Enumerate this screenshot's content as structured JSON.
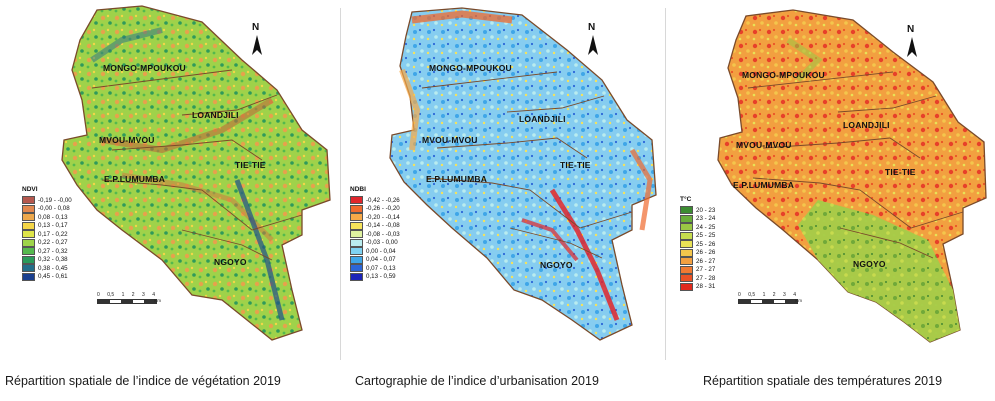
{
  "panels": [
    {
      "id": "ndvi",
      "caption": "Répartition spatiale de l’indice de végétation 2019",
      "legend": {
        "title": "NDVI",
        "classes": [
          {
            "label": "-0,19 - -0,00",
            "color": "#b5584e"
          },
          {
            "label": "-0,00 - 0,08",
            "color": "#e2884f"
          },
          {
            "label": "0,08 - 0,13",
            "color": "#eda84c"
          },
          {
            "label": "0,13 - 0,17",
            "color": "#f4d648"
          },
          {
            "label": "0,17 - 0,22",
            "color": "#dfe54a"
          },
          {
            "label": "0,22 - 0,27",
            "color": "#9ed44a"
          },
          {
            "label": "0,27 - 0,32",
            "color": "#55b94e"
          },
          {
            "label": "0,32 - 0,38",
            "color": "#2a9a5a"
          },
          {
            "label": "0,38 - 0,45",
            "color": "#246e8a"
          },
          {
            "label": "0,45 - 0,61",
            "color": "#1a3f8f"
          }
        ]
      },
      "districts": {
        "mongo": "MONGO-MPOUKOU",
        "loandjili": "LOANDJILI",
        "mvou": "MVOU-MVOU",
        "tietie": "TIE-TIE",
        "lumumba": "E.P.LUMUMBA",
        "ngoyo": "NGOYO"
      },
      "fill_colors": {
        "base": "#8fcf4a",
        "accent": "#e0a24c",
        "deep": "#2a7a8a",
        "edge": "#8a5a3a"
      }
    },
    {
      "id": "ndbi",
      "caption": "Cartographie de l’indice d’urbanisation 2019",
      "legend": {
        "title": "NDBI",
        "classes": [
          {
            "label": "-0,42 - -0,26",
            "color": "#e0262c"
          },
          {
            "label": "-0,26 - -0,20",
            "color": "#f06a2e"
          },
          {
            "label": "-0,20 - -0,14",
            "color": "#f7a948"
          },
          {
            "label": "-0,14 - -0,08",
            "color": "#f6e35a"
          },
          {
            "label": "-0,08 - -0,03",
            "color": "#dff2a0"
          },
          {
            "label": "-0,03 - 0,00",
            "color": "#b9ecef"
          },
          {
            "label": "0,00 - 0,04",
            "color": "#7ed2f2"
          },
          {
            "label": "0,04 - 0,07",
            "color": "#3fa6e8"
          },
          {
            "label": "0,07 - 0,13",
            "color": "#2c66d8"
          },
          {
            "label": "0,13 - 0,59",
            "color": "#1c24b8"
          }
        ]
      },
      "districts": {
        "mongo": "MONGO-MPOUKOU",
        "loandjili": "LOANDJILI",
        "mvou": "MVOU-MVOU",
        "tietie": "TIE-TIE",
        "lumumba": "E.P.LUMUMBA",
        "ngoyo": "NGOYO"
      },
      "fill_colors": {
        "base": "#7cc8ef",
        "accent": "#f1a23d",
        "deep": "#e0262c",
        "edge": "#8a5a3a"
      }
    },
    {
      "id": "temp",
      "caption": "Répartition spatiale des températures 2019",
      "legend": {
        "title": "T°C",
        "classes": [
          {
            "label": "20 - 23",
            "color": "#3c8c32"
          },
          {
            "label": "23 - 24",
            "color": "#6aae3a"
          },
          {
            "label": "24 - 25",
            "color": "#9ac844"
          },
          {
            "label": "25 - 25",
            "color": "#c6dc4e"
          },
          {
            "label": "25 - 26",
            "color": "#e9e256"
          },
          {
            "label": "26 - 26",
            "color": "#f4c64c"
          },
          {
            "label": "26 - 27",
            "color": "#f4a040"
          },
          {
            "label": "27 - 27",
            "color": "#f07a32"
          },
          {
            "label": "27 - 28",
            "color": "#ea5226"
          },
          {
            "label": "28 - 31",
            "color": "#e02a1e"
          }
        ]
      },
      "districts": {
        "mongo": "MONGO-MPOUKOU",
        "loandjili": "LOANDJILI",
        "mvou": "MVOU-MVOU",
        "tietie": "TIE-TIE",
        "lumumba": "E.P.LUMUMBA",
        "ngoyo": "NGOYO"
      },
      "fill_colors": {
        "base": "#f29a3e",
        "accent": "#e7402a",
        "deep": "#9cc84a",
        "edge": "#8a5a3a"
      }
    }
  ],
  "north_arrow": "N",
  "scale_bar": {
    "ticks": [
      "0",
      "0,5",
      "1",
      "2",
      "3",
      "4"
    ],
    "unit": "Km"
  }
}
